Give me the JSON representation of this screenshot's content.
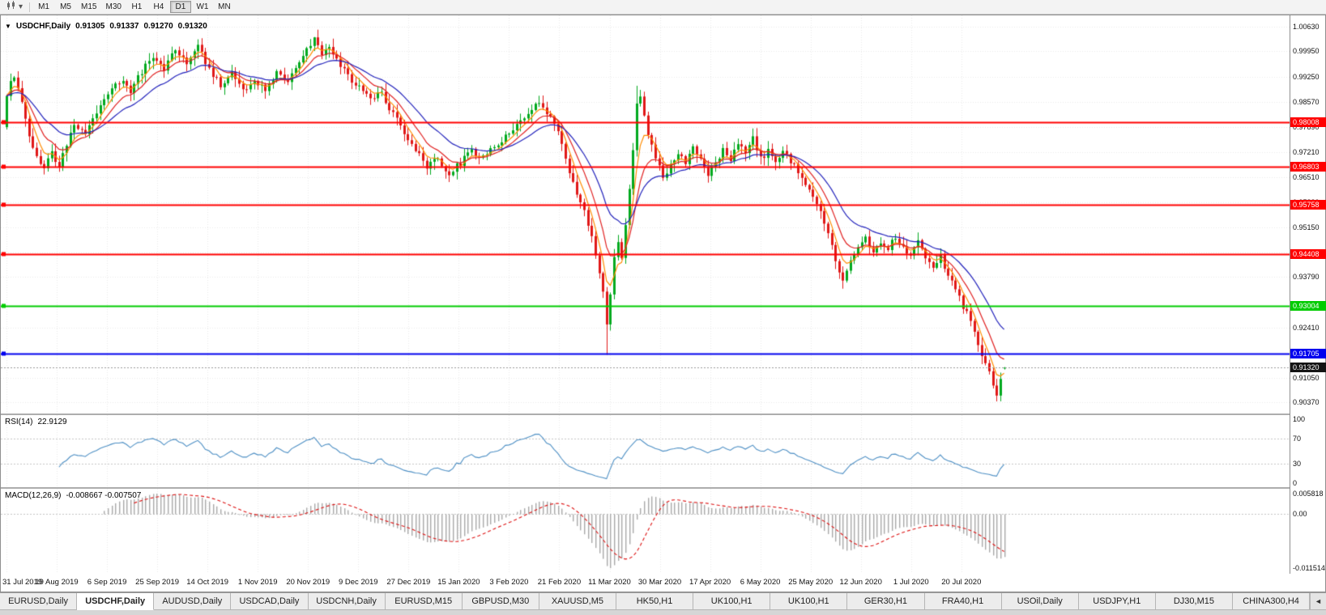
{
  "toolbar": {
    "timeframes": [
      "M1",
      "M5",
      "M15",
      "M30",
      "H1",
      "H4",
      "D1",
      "W1",
      "MN"
    ],
    "active_timeframe": "D1",
    "dropdown_caret": "▾"
  },
  "window_tabs": {
    "items": [
      "EURUSD,Daily",
      "USDCHF,Daily",
      "AUDUSD,Daily",
      "USDCAD,Daily",
      "USDCNH,Daily",
      "EURUSD,M15",
      "GBPUSD,M30",
      "XAUUSD,M5",
      "HK50,H1",
      "UK100,H1",
      "UK100,H1",
      "GER30,H1",
      "FRA40,H1",
      "USOil,Daily",
      "USDJPY,H1",
      "DJ30,M15",
      "CHINA300,H4"
    ],
    "active_index": 1,
    "scroll_left_icon": "◄"
  },
  "ohlc_info": {
    "marker": "▼",
    "symbol": "USDCHF,Daily",
    "open": "0.91305",
    "high": "0.91337",
    "low": "0.91270",
    "close": "0.91320"
  },
  "indicators": {
    "rsi": {
      "name": "RSI(14)",
      "value": "22.9129",
      "axis_labels": [
        "100",
        "70",
        "30",
        "0"
      ],
      "levels": [
        70,
        30
      ],
      "line_color": "#4d8fc4"
    },
    "macd": {
      "name": "MACD(12,26,9)",
      "values": "-0.008667 -0.007507",
      "axis_labels": {
        "max": "0.005818",
        "zero": "0.00",
        "min": "-0.011514"
      },
      "histogram_color": "#a9a9a9",
      "signal_color": "#dd1111"
    }
  },
  "chart_data": {
    "type": "candlestick",
    "symbol": "USDCHF",
    "timeframe": "Daily",
    "title": "USDCHF,Daily 0.91305 0.91337 0.91270 0.91320",
    "price_axis_ticks": [
      "1.00630",
      "0.99950",
      "0.99250",
      "0.98570",
      "0.97890",
      "0.97210",
      "0.96510",
      "0.95830",
      "0.95150",
      "0.94470",
      "0.93790",
      "0.92410",
      "0.91050",
      "0.90370"
    ],
    "date_axis_labels": [
      "31 Jul 2019",
      "19 Aug 2019",
      "6 Sep 2019",
      "25 Sep 2019",
      "14 Oct 2019",
      "1 Nov 2019",
      "20 Nov 2019",
      "9 Dec 2019",
      "27 Dec 2019",
      "15 Jan 2020",
      "3 Feb 2020",
      "21 Feb 2020",
      "11 Mar 2020",
      "30 Mar 2020",
      "17 Apr 2020",
      "6 May 2020",
      "25 May 2020",
      "12 Jun 2020",
      "1 Jul 2020",
      "20 Jul 2020"
    ],
    "hlines": [
      {
        "price": 0.98008,
        "label": "0.98008",
        "color": "#ff0000"
      },
      {
        "price": 0.96803,
        "label": "0.96803",
        "color": "#ff0000"
      },
      {
        "price": 0.95758,
        "label": "0.95758",
        "color": "#ff0000"
      },
      {
        "price": 0.94408,
        "label": "0.94408",
        "color": "#ff0000"
      },
      {
        "price": 0.93004,
        "label": "0.93004",
        "color": "#00cc00"
      },
      {
        "price": 0.91705,
        "label": "0.91705",
        "color": "#0000ee"
      }
    ],
    "bid": {
      "price": 0.9132,
      "label": "0.91320",
      "badge_color": "#141414"
    },
    "candle_count": 267,
    "price_scale": {
      "top": 1.0093,
      "bottom": 0.9007
    },
    "up_color": "#00a91e",
    "down_color": "#e01717",
    "moving_averages": [
      {
        "type": "EMA",
        "period": 5,
        "color": "#ff8c00"
      },
      {
        "type": "EMA",
        "period": 10,
        "color": "#e02020"
      },
      {
        "type": "EMA",
        "period": 21,
        "color": "#2222bb"
      }
    ],
    "close_anchors": [
      [
        0,
        0.988
      ],
      [
        2,
        0.993
      ],
      [
        4,
        0.985
      ],
      [
        6,
        0.977
      ],
      [
        8,
        0.97
      ],
      [
        10,
        0.9668
      ],
      [
        12,
        0.972
      ],
      [
        14,
        0.9685
      ],
      [
        16,
        0.9745
      ],
      [
        18,
        0.9795
      ],
      [
        21,
        0.9768
      ],
      [
        24,
        0.983
      ],
      [
        27,
        0.9875
      ],
      [
        30,
        0.9915
      ],
      [
        33,
        0.989
      ],
      [
        36,
        0.994
      ],
      [
        39,
        0.9982
      ],
      [
        42,
        0.995
      ],
      [
        45,
        0.9998
      ],
      [
        48,
        0.9968
      ],
      [
        51,
        1.0005
      ],
      [
        54,
        0.9948
      ],
      [
        57,
        0.9905
      ],
      [
        60,
        0.9935
      ],
      [
        63,
        0.9885
      ],
      [
        66,
        0.9915
      ],
      [
        69,
        0.9892
      ],
      [
        72,
        0.9932
      ],
      [
        75,
        0.9908
      ],
      [
        78,
        0.9972
      ],
      [
        80,
        1.0008
      ],
      [
        82,
        1.0028
      ],
      [
        84,
        0.9992
      ],
      [
        86,
        1.0012
      ],
      [
        88,
        0.9968
      ],
      [
        91,
        0.993
      ],
      [
        94,
        0.9898
      ],
      [
        97,
        0.9858
      ],
      [
        100,
        0.9882
      ],
      [
        103,
        0.9822
      ],
      [
        106,
        0.9772
      ],
      [
        109,
        0.9722
      ],
      [
        112,
        0.9682
      ],
      [
        115,
        0.9702
      ],
      [
        118,
        0.9662
      ],
      [
        121,
        0.9692
      ],
      [
        124,
        0.9726
      ],
      [
        127,
        0.9702
      ],
      [
        130,
        0.9732
      ],
      [
        133,
        0.9762
      ],
      [
        136,
        0.9792
      ],
      [
        139,
        0.9832
      ],
      [
        142,
        0.9848
      ],
      [
        145,
        0.9815
      ],
      [
        147,
        0.978
      ],
      [
        149,
        0.9698
      ],
      [
        151,
        0.9638
      ],
      [
        153,
        0.958
      ],
      [
        155,
        0.9528
      ],
      [
        157,
        0.9448
      ],
      [
        159,
        0.933
      ],
      [
        160,
        0.924
      ],
      [
        161,
        0.933
      ],
      [
        162,
        0.9425
      ],
      [
        163,
        0.948
      ],
      [
        164,
        0.9425
      ],
      [
        165,
        0.953
      ],
      [
        166,
        0.9625
      ],
      [
        167,
        0.9725
      ],
      [
        168,
        0.9855
      ],
      [
        169,
        0.988
      ],
      [
        170,
        0.982
      ],
      [
        171,
        0.9762
      ],
      [
        173,
        0.97
      ],
      [
        175,
        0.9648
      ],
      [
        177,
        0.9688
      ],
      [
        179,
        0.9722
      ],
      [
        181,
        0.9692
      ],
      [
        183,
        0.973
      ],
      [
        185,
        0.97
      ],
      [
        187,
        0.9662
      ],
      [
        189,
        0.9692
      ],
      [
        191,
        0.973
      ],
      [
        193,
        0.9702
      ],
      [
        195,
        0.9742
      ],
      [
        197,
        0.9722
      ],
      [
        199,
        0.9758
      ],
      [
        201,
        0.9702
      ],
      [
        203,
        0.9722
      ],
      [
        205,
        0.969
      ],
      [
        207,
        0.972
      ],
      [
        209,
        0.9698
      ],
      [
        211,
        0.9672
      ],
      [
        213,
        0.9638
      ],
      [
        215,
        0.9602
      ],
      [
        217,
        0.9562
      ],
      [
        219,
        0.9502
      ],
      [
        221,
        0.942
      ],
      [
        223,
        0.9362
      ],
      [
        225,
        0.942
      ],
      [
        227,
        0.9455
      ],
      [
        229,
        0.948
      ],
      [
        231,
        0.9445
      ],
      [
        233,
        0.948
      ],
      [
        235,
        0.9455
      ],
      [
        237,
        0.949
      ],
      [
        239,
        0.9465
      ],
      [
        241,
        0.944
      ],
      [
        243,
        0.947
      ],
      [
        245,
        0.9432
      ],
      [
        247,
        0.9402
      ],
      [
        249,
        0.9432
      ],
      [
        251,
        0.9382
      ],
      [
        253,
        0.9352
      ],
      [
        254,
        0.9322
      ],
      [
        256,
        0.9282
      ],
      [
        258,
        0.9222
      ],
      [
        260,
        0.9162
      ],
      [
        262,
        0.9122
      ],
      [
        263,
        0.9082
      ],
      [
        264,
        0.9052
      ],
      [
        265,
        0.9108
      ],
      [
        266,
        0.9132
      ]
    ],
    "candle_overrides": [
      {
        "i": 10,
        "l": 0.9659
      },
      {
        "i": 82,
        "h": 1.0034
      },
      {
        "i": 160,
        "l": 0.9167
      },
      {
        "i": 168,
        "h": 0.9901
      },
      {
        "i": 264,
        "l": 0.904
      },
      {
        "i": 266,
        "o": 0.91305,
        "h": 0.91337,
        "l": 0.9127,
        "c": 0.9132
      }
    ]
  }
}
